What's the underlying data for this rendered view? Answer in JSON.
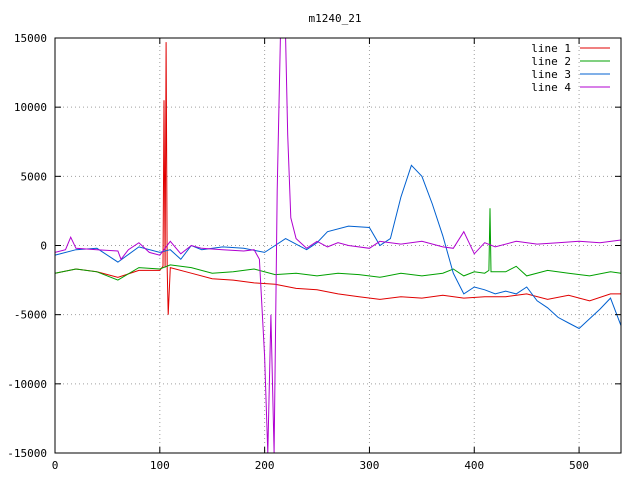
{
  "chart_data": {
    "type": "line",
    "title": "m1240_21",
    "xlabel": "",
    "ylabel": "",
    "xlim": [
      0,
      540
    ],
    "ylim": [
      -15000,
      15000
    ],
    "xticks": [
      0,
      100,
      200,
      300,
      400,
      500
    ],
    "yticks": [
      -15000,
      -10000,
      -5000,
      0,
      5000,
      10000,
      15000
    ],
    "grid": true,
    "legend_position": "top-right",
    "series": [
      {
        "name": "line 1",
        "color": "#e00000",
        "points": [
          [
            0,
            -2000
          ],
          [
            20,
            -1700
          ],
          [
            40,
            -1900
          ],
          [
            60,
            -2300
          ],
          [
            80,
            -1800
          ],
          [
            100,
            -1800
          ],
          [
            103,
            -1500
          ],
          [
            104,
            10500
          ],
          [
            105,
            -1600
          ],
          [
            106,
            14700
          ],
          [
            107,
            -1700
          ],
          [
            108,
            -5000
          ],
          [
            110,
            -1600
          ],
          [
            130,
            -2000
          ],
          [
            150,
            -2400
          ],
          [
            170,
            -2500
          ],
          [
            190,
            -2700
          ],
          [
            210,
            -2800
          ],
          [
            230,
            -3100
          ],
          [
            250,
            -3200
          ],
          [
            270,
            -3500
          ],
          [
            290,
            -3700
          ],
          [
            310,
            -3900
          ],
          [
            330,
            -3700
          ],
          [
            350,
            -3800
          ],
          [
            370,
            -3600
          ],
          [
            390,
            -3800
          ],
          [
            410,
            -3700
          ],
          [
            430,
            -3700
          ],
          [
            450,
            -3500
          ],
          [
            470,
            -3900
          ],
          [
            490,
            -3600
          ],
          [
            510,
            -4000
          ],
          [
            530,
            -3500
          ],
          [
            540,
            -3500
          ]
        ]
      },
      {
        "name": "line 2",
        "color": "#00a000",
        "points": [
          [
            0,
            -2000
          ],
          [
            20,
            -1700
          ],
          [
            40,
            -1900
          ],
          [
            60,
            -2500
          ],
          [
            80,
            -1600
          ],
          [
            100,
            -1700
          ],
          [
            110,
            -1400
          ],
          [
            130,
            -1600
          ],
          [
            150,
            -2000
          ],
          [
            170,
            -1900
          ],
          [
            190,
            -1700
          ],
          [
            210,
            -2100
          ],
          [
            230,
            -2000
          ],
          [
            250,
            -2200
          ],
          [
            270,
            -2000
          ],
          [
            290,
            -2100
          ],
          [
            310,
            -2300
          ],
          [
            330,
            -2000
          ],
          [
            350,
            -2200
          ],
          [
            370,
            -2000
          ],
          [
            380,
            -1700
          ],
          [
            390,
            -2200
          ],
          [
            400,
            -1900
          ],
          [
            410,
            -2000
          ],
          [
            414,
            -1800
          ],
          [
            415,
            2700
          ],
          [
            416,
            -1900
          ],
          [
            430,
            -1900
          ],
          [
            440,
            -1500
          ],
          [
            450,
            -2200
          ],
          [
            470,
            -1800
          ],
          [
            490,
            -2000
          ],
          [
            510,
            -2200
          ],
          [
            530,
            -1900
          ],
          [
            540,
            -2000
          ]
        ]
      },
      {
        "name": "line 3",
        "color": "#0060d0",
        "points": [
          [
            0,
            -700
          ],
          [
            20,
            -300
          ],
          [
            40,
            -200
          ],
          [
            60,
            -1200
          ],
          [
            80,
            -100
          ],
          [
            100,
            -500
          ],
          [
            110,
            -300
          ],
          [
            120,
            -1000
          ],
          [
            130,
            0
          ],
          [
            140,
            -300
          ],
          [
            160,
            -100
          ],
          [
            180,
            -200
          ],
          [
            200,
            -500
          ],
          [
            210,
            0
          ],
          [
            220,
            500
          ],
          [
            240,
            -300
          ],
          [
            250,
            200
          ],
          [
            260,
            1000
          ],
          [
            280,
            1400
          ],
          [
            300,
            1300
          ],
          [
            310,
            0
          ],
          [
            320,
            500
          ],
          [
            330,
            3500
          ],
          [
            340,
            5800
          ],
          [
            350,
            5000
          ],
          [
            360,
            3000
          ],
          [
            370,
            700
          ],
          [
            380,
            -2000
          ],
          [
            390,
            -3500
          ],
          [
            400,
            -3000
          ],
          [
            410,
            -3200
          ],
          [
            420,
            -3500
          ],
          [
            430,
            -3300
          ],
          [
            440,
            -3500
          ],
          [
            450,
            -3000
          ],
          [
            460,
            -4000
          ],
          [
            470,
            -4500
          ],
          [
            480,
            -5200
          ],
          [
            490,
            -5600
          ],
          [
            500,
            -6000
          ],
          [
            510,
            -5300
          ],
          [
            520,
            -4600
          ],
          [
            530,
            -3800
          ],
          [
            540,
            -5800
          ]
        ]
      },
      {
        "name": "line 4",
        "color": "#b000d0",
        "points": [
          [
            0,
            -500
          ],
          [
            10,
            -300
          ],
          [
            15,
            600
          ],
          [
            20,
            -200
          ],
          [
            40,
            -300
          ],
          [
            60,
            -400
          ],
          [
            63,
            -1000
          ],
          [
            70,
            -300
          ],
          [
            80,
            200
          ],
          [
            90,
            -500
          ],
          [
            100,
            -700
          ],
          [
            110,
            300
          ],
          [
            120,
            -600
          ],
          [
            130,
            0
          ],
          [
            140,
            -200
          ],
          [
            160,
            -300
          ],
          [
            180,
            -400
          ],
          [
            190,
            -300
          ],
          [
            195,
            -1000
          ],
          [
            200,
            -8000
          ],
          [
            203,
            -15000
          ],
          [
            206,
            -5000
          ],
          [
            209,
            -15000
          ],
          [
            212,
            4000
          ],
          [
            215,
            15000
          ],
          [
            220,
            15000
          ],
          [
            222,
            8000
          ],
          [
            225,
            2000
          ],
          [
            230,
            500
          ],
          [
            240,
            -200
          ],
          [
            250,
            300
          ],
          [
            260,
            -100
          ],
          [
            270,
            200
          ],
          [
            280,
            0
          ],
          [
            300,
            -200
          ],
          [
            310,
            300
          ],
          [
            330,
            100
          ],
          [
            350,
            300
          ],
          [
            370,
            -100
          ],
          [
            380,
            -200
          ],
          [
            390,
            1000
          ],
          [
            400,
            -600
          ],
          [
            410,
            200
          ],
          [
            420,
            -100
          ],
          [
            440,
            300
          ],
          [
            460,
            100
          ],
          [
            480,
            200
          ],
          [
            500,
            300
          ],
          [
            520,
            200
          ],
          [
            540,
            400
          ]
        ]
      }
    ]
  }
}
